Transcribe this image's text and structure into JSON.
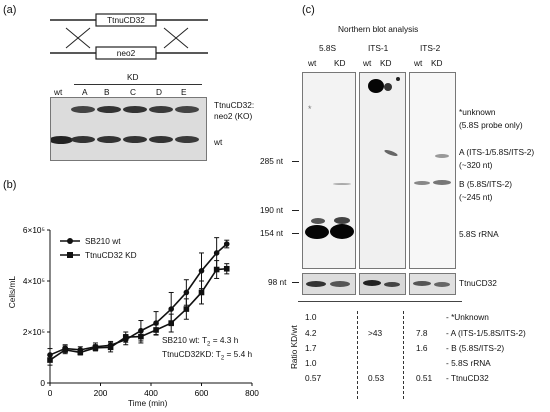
{
  "panel_a": {
    "label": "(a)",
    "construct_top": "TtnuCD32",
    "construct_bottom": "neo2",
    "lanes": [
      "wt",
      "A",
      "B",
      "C",
      "D",
      "E"
    ],
    "kd_label": "KD",
    "band_labels": [
      "TtnuCD32:",
      "neo2 (KO)",
      "wt"
    ]
  },
  "panel_b": {
    "label": "(b)",
    "chart_data": {
      "type": "line",
      "xlabel": "Time (min)",
      "ylabel": "Cells/mL",
      "xlim": [
        0,
        800
      ],
      "ylim": [
        0,
        600000
      ],
      "x_ticks": [
        "0",
        "200",
        "400",
        "600",
        "800"
      ],
      "y_ticks": [
        "0",
        "2×10⁵",
        "4×10⁵",
        "6×10⁵"
      ],
      "series": [
        {
          "name": "SB210 wt",
          "marker": "circle",
          "x": [
            0,
            60,
            120,
            180,
            240,
            300,
            360,
            420,
            480,
            540,
            600,
            660,
            700
          ],
          "y": [
            110000,
            135000,
            130000,
            142000,
            148000,
            170000,
            205000,
            235000,
            290000,
            355000,
            440000,
            510000,
            545000
          ],
          "err": [
            25000,
            15000,
            12000,
            15000,
            15000,
            20000,
            40000,
            45000,
            65000,
            50000,
            70000,
            60000,
            15000
          ]
        },
        {
          "name": "TtnuCD32 KD",
          "marker": "square",
          "x": [
            0,
            60,
            120,
            180,
            240,
            300,
            360,
            420,
            480,
            540,
            600,
            660,
            700
          ],
          "y": [
            90000,
            130000,
            120000,
            138000,
            140000,
            180000,
            182000,
            208000,
            235000,
            290000,
            355000,
            445000,
            448000
          ],
          "err": [
            20000,
            15000,
            10000,
            12000,
            18000,
            20000,
            25000,
            20000,
            35000,
            40000,
            45000,
            35000,
            20000
          ]
        }
      ],
      "annotations": [
        "SB210 wt: T",
        "2",
        "= 4.3 h",
        "TtnuCD32KD: T",
        "2",
        "= 5.4 h"
      ]
    }
  },
  "panel_c": {
    "label": "(c)",
    "title": "Northern blot analysis",
    "probes": [
      "5.8S",
      "ITS-1",
      "ITS-2"
    ],
    "lane_wt": "wt",
    "lane_kd": "KD",
    "size_markers": [
      "285 nt",
      "190 nt",
      "154 nt"
    ],
    "loading_marker": "98 nt",
    "band_labels": [
      "*unknown",
      "(5.8S probe only)",
      "A (ITS-1/5.8S/ITS-2)",
      "(~320 nt)",
      "B (5.8S/ITS-2)",
      "(~245 nt)",
      "5.8S rRNA"
    ],
    "loading_label": "TtnuCD32",
    "star": "*",
    "ratio_axis_label": "Ratio KD/wt",
    "ratios_58s": [
      "1.0",
      "4.2",
      "1.7",
      "1.0",
      "0.57"
    ],
    "ratios_its1": [
      ">43",
      "0.53"
    ],
    "ratios_its2": [
      "7.8",
      "1.6",
      "0.51"
    ],
    "ratio_row_labels": [
      "- *Unknown",
      "- A (ITS-1/5.8S/ITS-2)",
      "- B (5.8S/ITS-2)",
      "- 5.8S rRNA",
      "- TtnuCD32"
    ]
  }
}
